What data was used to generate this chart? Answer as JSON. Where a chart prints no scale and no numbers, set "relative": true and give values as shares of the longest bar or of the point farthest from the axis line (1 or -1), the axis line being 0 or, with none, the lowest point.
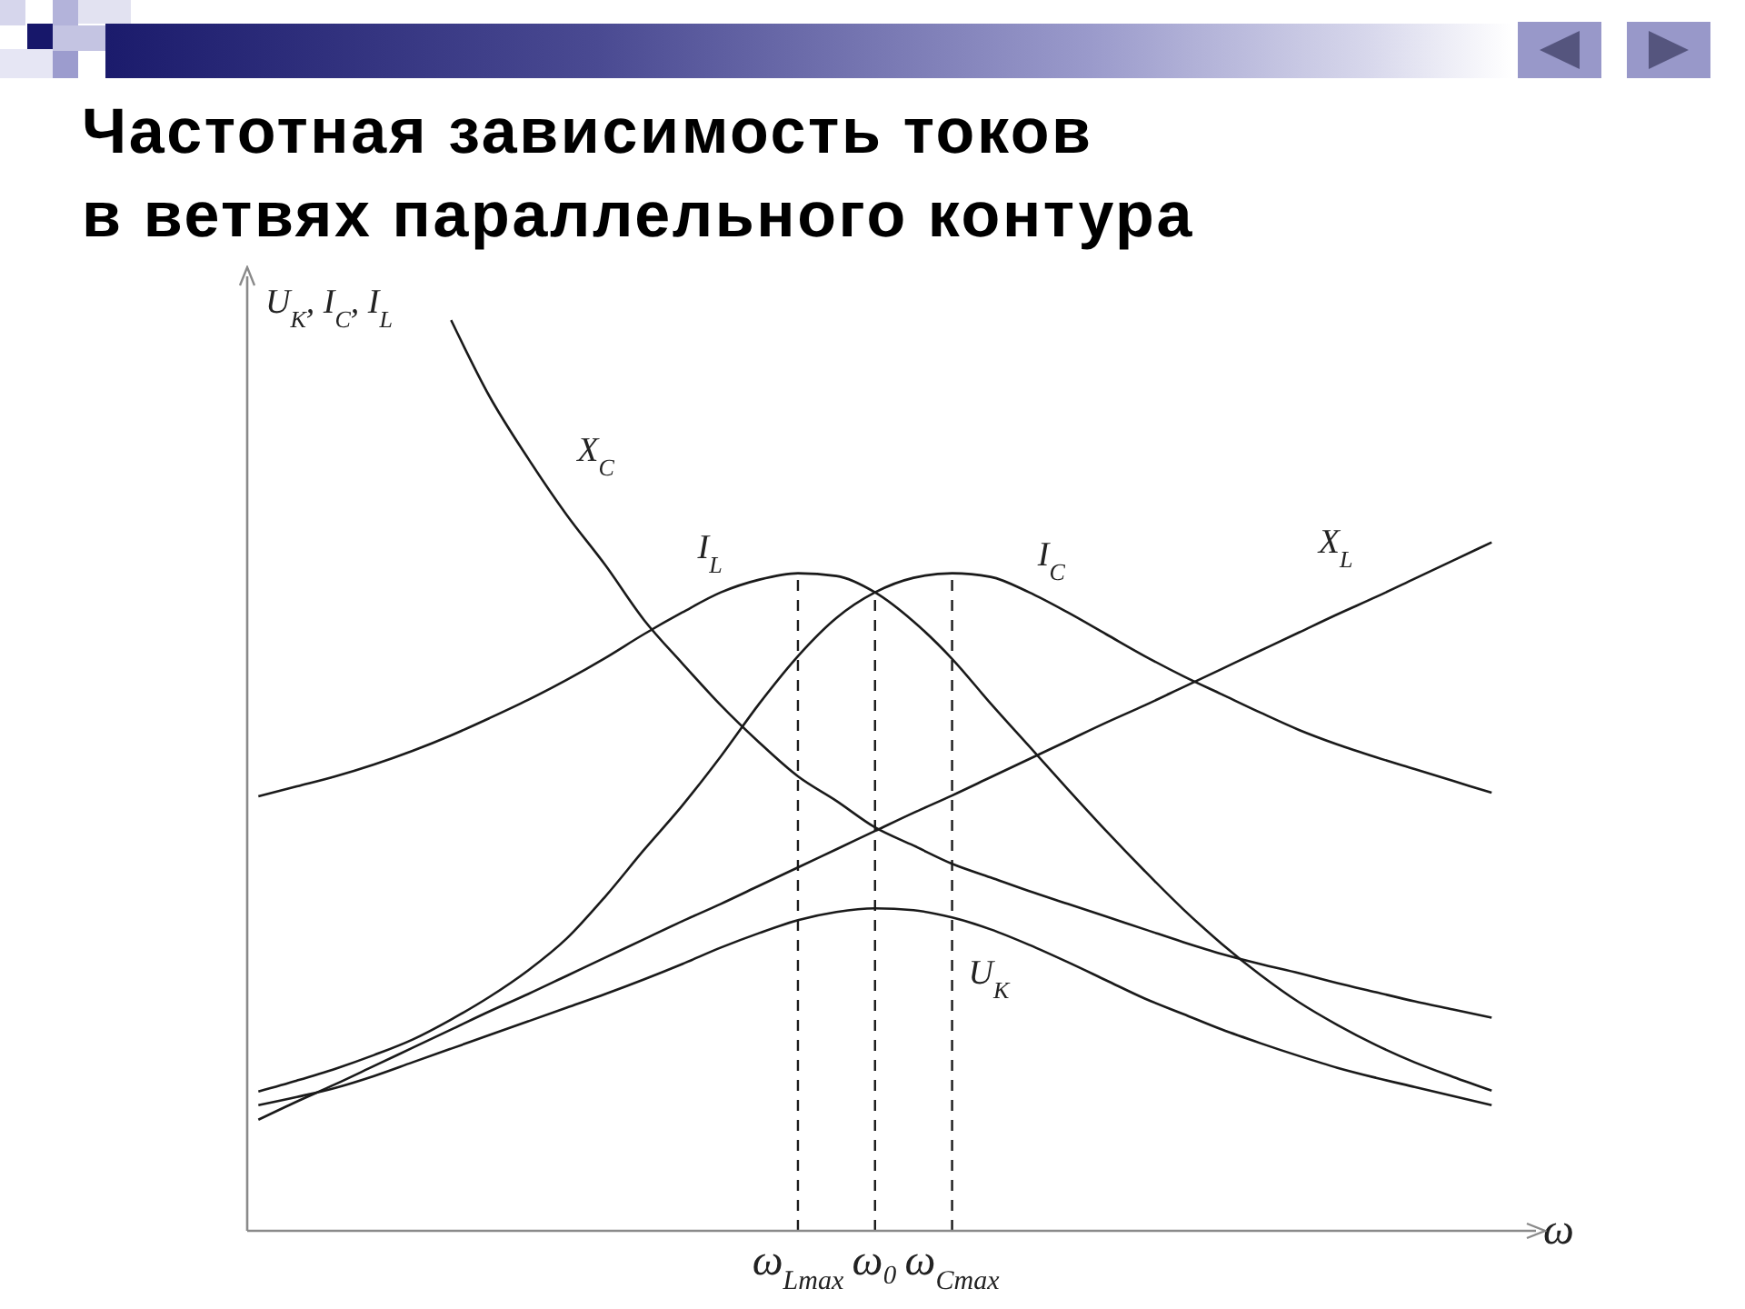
{
  "chart_data": {
    "type": "line",
    "title": "Частотная зависимость токов\nв ветвях параллельного контура",
    "xlabel": "ω",
    "ylabel": "U$_{K}$, I$_{C}$, I$_{L}$",
    "relative": true,
    "marker": "none",
    "line_style": "solid",
    "categories": [
      null,
      null,
      null,
      null,
      null,
      null,
      null,
      null,
      null,
      null,
      null,
      null,
      null,
      null,
      "ω$_{Lmax}$",
      null,
      "ω₀",
      null,
      "ω$_{Cmax}$",
      null,
      null,
      null,
      null,
      null,
      null,
      null,
      null,
      null,
      null,
      null,
      null,
      null,
      null
    ],
    "series": [
      {
        "name": "X$_{C}$",
        "color": "#1a1a1a",
        "values": [
          null,
          null,
          null,
          null,
          null,
          1,
          0.916,
          0.848,
          0.786,
          0.731,
          0.671,
          0.623,
          0.577,
          0.536,
          0.499,
          0.472,
          0.443,
          0.423,
          0.403,
          0.388,
          0.373,
          0.359,
          0.345,
          0.331,
          0.317,
          0.304,
          0.293,
          0.283,
          0.272,
          0.262,
          0.252,
          0.243,
          0.234
        ]
      },
      {
        "name": "I$_{L}$",
        "color": "#1a1a1a",
        "values": [
          0.477,
          0.488,
          0.499,
          0.512,
          0.527,
          0.544,
          0.563,
          0.583,
          0.605,
          0.629,
          0.655,
          0.679,
          0.701,
          0.715,
          0.722,
          0.719,
          0.701,
          0.669,
          0.628,
          0.579,
          0.532,
          0.485,
          0.439,
          0.395,
          0.353,
          0.315,
          0.281,
          0.251,
          0.226,
          0.204,
          0.185,
          0.169,
          0.154
        ]
      },
      {
        "name": "I$_{C}$",
        "color": "#1a1a1a",
        "values": [
          0.153,
          0.165,
          0.178,
          0.193,
          0.21,
          0.232,
          0.257,
          0.286,
          0.321,
          0.367,
          0.418,
          0.467,
          0.521,
          0.579,
          0.631,
          0.673,
          0.701,
          0.717,
          0.722,
          0.718,
          0.701,
          0.679,
          0.655,
          0.631,
          0.609,
          0.589,
          0.569,
          0.55,
          0.534,
          0.52,
          0.507,
          0.494,
          0.481
        ]
      },
      {
        "name": "X$_{L}$",
        "color": "#1a1a1a",
        "values": [
          0.122,
          0.142,
          0.161,
          0.181,
          0.201,
          0.221,
          0.241,
          0.26,
          0.28,
          0.3,
          0.32,
          0.34,
          0.359,
          0.379,
          0.399,
          0.419,
          0.439,
          0.459,
          0.478,
          0.498,
          0.518,
          0.538,
          0.558,
          0.577,
          0.597,
          0.617,
          0.637,
          0.657,
          0.677,
          0.696,
          0.716,
          0.736,
          0.756
        ]
      },
      {
        "name": "U$_{K}$",
        "color": "#1a1a1a",
        "values": [
          0.138,
          0.147,
          0.157,
          0.17,
          0.185,
          0.2,
          0.215,
          0.23,
          0.245,
          0.26,
          0.276,
          0.293,
          0.311,
          0.327,
          0.341,
          0.35,
          0.354,
          0.352,
          0.344,
          0.331,
          0.314,
          0.295,
          0.275,
          0.255,
          0.238,
          0.221,
          0.206,
          0.192,
          0.179,
          0.168,
          0.158,
          0.148,
          0.138
        ]
      }
    ],
    "ref_lines": [
      {
        "axis": "x",
        "value": "ω$_{Lmax}$",
        "color": "#1a1a1a",
        "line_style": "dashed"
      },
      {
        "axis": "x",
        "value": "ω₀",
        "color": "#1a1a1a",
        "line_style": "dashed"
      },
      {
        "axis": "x",
        "value": "ω$_{Cmax}$",
        "color": "#1a1a1a",
        "line_style": "dashed"
      }
    ]
  }
}
